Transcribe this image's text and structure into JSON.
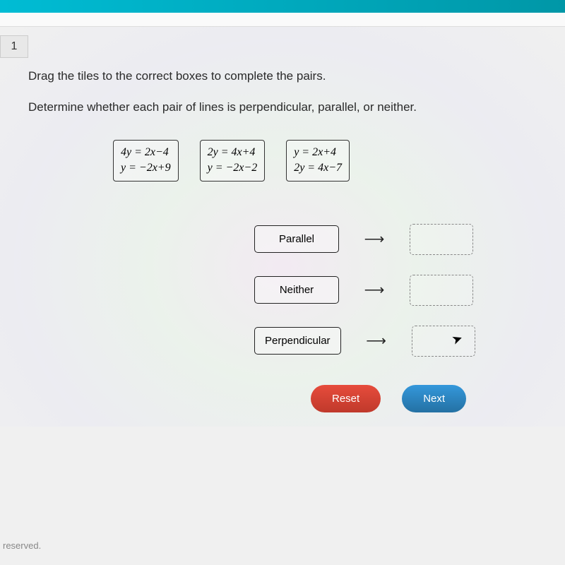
{
  "page_number": "1",
  "instruction": "Drag the tiles to the correct boxes to complete the pairs.",
  "sub_instruction": "Determine whether each pair of lines is perpendicular, parallel, or neither.",
  "tiles": [
    {
      "line1": "4y = 2x−4",
      "line2": "y = −2x+9"
    },
    {
      "line1": "2y = 4x+4",
      "line2": "y = −2x−2"
    },
    {
      "line1": "y = 2x+4",
      "line2": "2y = 4x−7"
    }
  ],
  "categories": [
    {
      "label": "Parallel"
    },
    {
      "label": "Neither"
    },
    {
      "label": "Perpendicular"
    }
  ],
  "buttons": {
    "reset": "Reset",
    "next": "Next"
  },
  "footer": "reserved.",
  "colors": {
    "reset_bg": "#e74c3c",
    "next_bg": "#3498db",
    "border": "#333333"
  }
}
